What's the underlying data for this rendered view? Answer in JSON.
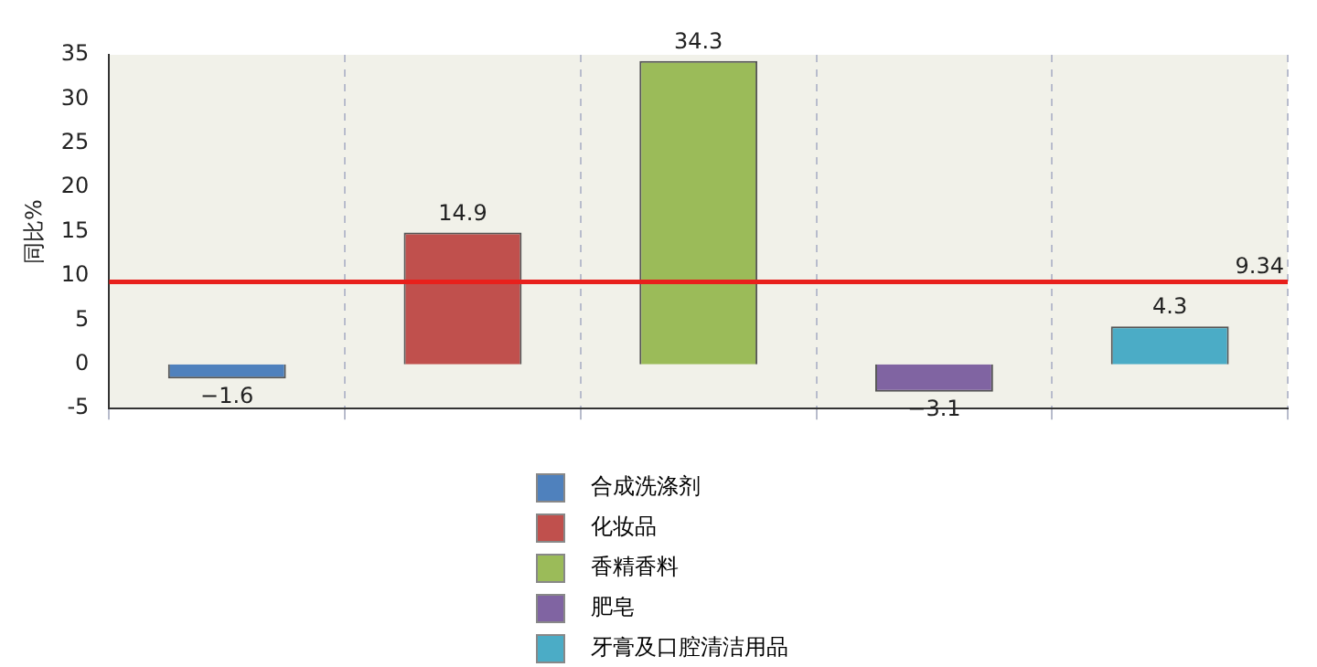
{
  "chart_data": {
    "type": "bar",
    "ylabel": "同比%",
    "categories": [
      null,
      null,
      null,
      null,
      null
    ],
    "series": [
      {
        "name": "合成洗涤剂",
        "color": "#4f81bd",
        "values": [
          -1.6,
          null,
          null,
          null,
          null
        ]
      },
      {
        "name": "化妆品",
        "color": "#c0504d",
        "values": [
          null,
          14.9,
          null,
          null,
          null
        ]
      },
      {
        "name": "香精香料",
        "color": "#9bbb59",
        "values": [
          null,
          null,
          34.3,
          null,
          null
        ]
      },
      {
        "name": "肥皂",
        "color": "#8064a2",
        "values": [
          null,
          null,
          null,
          -3.1,
          null
        ]
      },
      {
        "name": "牙膏及口腔清洁用品",
        "color": "#4bacc6",
        "values": [
          null,
          null,
          null,
          null,
          4.3
        ]
      }
    ],
    "ylim": [
      -5,
      35
    ],
    "yticks": [
      -5,
      0,
      5,
      10,
      15,
      20,
      25,
      30,
      35
    ],
    "ref_lines": [
      {
        "axis": "y",
        "value": 9.34,
        "label": "9.34",
        "color": "#e8201c"
      }
    ],
    "data_labels": true,
    "grid": "x",
    "legend": "bottom"
  }
}
